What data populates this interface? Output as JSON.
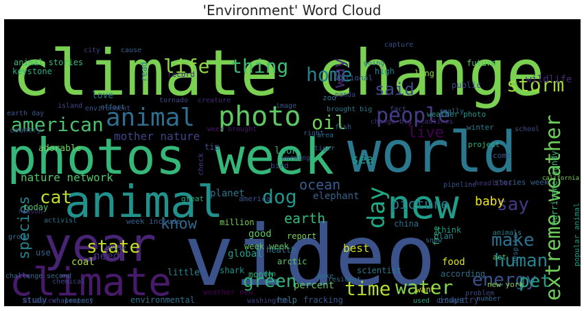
{
  "title": "'Environment' Word Cloud",
  "words": [
    {
      "text": "climate change",
      "color": "#7ad151"
    },
    {
      "text": "video",
      "color": "#3b528b"
    },
    {
      "text": "world",
      "color": "#2a788e"
    },
    {
      "text": "photos week",
      "color": "#35b779"
    },
    {
      "text": "animal",
      "color": "#21918c"
    },
    {
      "text": "year",
      "color": "#482475"
    },
    {
      "text": "climate",
      "color": "#481a6c"
    },
    {
      "text": "new",
      "color": "#1f9e89"
    },
    {
      "text": "extreme weather",
      "color": "#6ece58"
    },
    {
      "text": "photo",
      "color": "#5ec962"
    },
    {
      "text": "animal",
      "color": "#2e6e8e"
    },
    {
      "text": "life",
      "color": "#90d743"
    },
    {
      "text": "thing",
      "color": "#3fbc73"
    },
    {
      "text": "home",
      "color": "#26828e"
    },
    {
      "text": "storm",
      "color": "#9fda3a"
    },
    {
      "text": "said",
      "color": "#3e4a89"
    },
    {
      "text": "american",
      "color": "#4ac16d"
    },
    {
      "text": "people",
      "color": "#433e85"
    },
    {
      "text": "oil",
      "color": "#6ece58"
    },
    {
      "text": "day",
      "color": "#22a884"
    },
    {
      "text": "dog",
      "color": "#1f958b"
    },
    {
      "text": "cat",
      "color": "#bddf26"
    },
    {
      "text": "say",
      "color": "#443983"
    },
    {
      "text": "species",
      "color": "#25848e"
    },
    {
      "text": "know",
      "color": "#31688e"
    },
    {
      "text": "make",
      "color": "#2c728e"
    },
    {
      "text": "state",
      "color": "#cae11f"
    },
    {
      "text": "human",
      "color": "#26828e"
    },
    {
      "text": "green",
      "color": "#2fb47c"
    },
    {
      "text": "time",
      "color": "#b5de2b"
    },
    {
      "text": "water",
      "color": "#84d44b"
    },
    {
      "text": "energy",
      "color": "#3b528b"
    },
    {
      "text": "pet",
      "color": "#1fa088"
    },
    {
      "text": "earth",
      "color": "#35b779"
    },
    {
      "text": "picture",
      "color": "#2a788e"
    },
    {
      "text": "ocean",
      "color": "#375b8d"
    },
    {
      "text": "live",
      "color": "#440154"
    },
    {
      "text": "way",
      "color": "#472c7a"
    },
    {
      "text": "mother nature",
      "color": "#414487"
    },
    {
      "text": "nature network",
      "color": "#52c569"
    },
    {
      "text": "animal stories",
      "color": "#3dbc74"
    },
    {
      "text": "adorable",
      "color": "#70cf57"
    },
    {
      "text": "sea",
      "color": "#1e9b8a"
    },
    {
      "text": "elephant",
      "color": "#33638d"
    },
    {
      "text": "look",
      "color": "#29af7f"
    },
    {
      "text": "need",
      "color": "#46337e"
    },
    {
      "text": "percent",
      "color": "#5ec962"
    },
    {
      "text": "help",
      "color": "#25848e"
    },
    {
      "text": "food",
      "color": "#dde318"
    },
    {
      "text": "according",
      "color": "#2d708e"
    },
    {
      "text": "baby",
      "color": "#f1e51d"
    },
    {
      "text": "future",
      "color": "#52c569"
    },
    {
      "text": "public",
      "color": "#3e4989"
    },
    {
      "text": "wildlife",
      "color": "#482878"
    },
    {
      "text": "read",
      "color": "#297b8e"
    },
    {
      "text": "love",
      "color": "#2a788e"
    },
    {
      "text": "coal",
      "color": "#a8db34"
    },
    {
      "text": "best",
      "color": "#d0e11c"
    },
    {
      "text": "good",
      "color": "#5ec962"
    },
    {
      "text": "planet",
      "color": "#2c728e"
    },
    {
      "text": "report",
      "color": "#7ad151"
    },
    {
      "text": "fracking",
      "color": "#38588c"
    },
    {
      "text": "new york",
      "color": "#86d549"
    },
    {
      "text": "health",
      "color": "#2a768e"
    },
    {
      "text": "global",
      "color": "#1f9f88"
    },
    {
      "text": "shark",
      "color": "#20928c"
    },
    {
      "text": "arctic",
      "color": "#5ec962"
    },
    {
      "text": "month",
      "color": "#31b57b"
    },
    {
      "text": "little",
      "color": "#25848e"
    },
    {
      "text": "tip",
      "color": "#3b528b"
    },
    {
      "text": "china",
      "color": "#2c728e"
    },
    {
      "text": "industry",
      "color": "#3e4a89"
    },
    {
      "text": "think",
      "color": "#1f998a"
    },
    {
      "text": "plan",
      "color": "#26828e"
    },
    {
      "text": "snow",
      "color": "#2e6f8e"
    },
    {
      "text": "weather new",
      "color": "#440154"
    },
    {
      "text": "environmental",
      "color": "#2c728e"
    },
    {
      "text": "week week",
      "color": "#5ec962"
    },
    {
      "text": "scientist",
      "color": "#2a788e"
    },
    {
      "text": "million",
      "color": "#7ad151"
    },
    {
      "text": "today",
      "color": "#54c568"
    },
    {
      "text": "use",
      "color": "#31688e"
    },
    {
      "text": "country",
      "color": "#3e4989"
    },
    {
      "text": "keystone",
      "color": "#2ab07f"
    },
    {
      "text": "high",
      "color": "#26828e"
    },
    {
      "text": "long",
      "color": "#90d743"
    },
    {
      "text": "national",
      "color": "#365c8d"
    },
    {
      "text": "record",
      "color": "#482878"
    },
    {
      "text": "zoo",
      "color": "#2c728e"
    },
    {
      "text": "hurricane sandy",
      "color": "#3dbc74"
    },
    {
      "text": "weather photo",
      "color": "#1f968b"
    },
    {
      "text": "stories week",
      "color": "#32658e"
    },
    {
      "text": "project",
      "color": "#2ab07f"
    },
    {
      "text": "winter",
      "color": "#287d8e"
    },
    {
      "text": "california",
      "color": "#7ad151"
    },
    {
      "text": "school",
      "color": "#3b528b"
    },
    {
      "text": "come",
      "color": "#38588c"
    },
    {
      "text": "act",
      "color": "#52c569"
    },
    {
      "text": "popular animal",
      "color": "#1e9c89"
    },
    {
      "text": "free",
      "color": "#2ab07f"
    },
    {
      "text": "want",
      "color": "#cae11f"
    },
    {
      "text": "used",
      "color": "#20a386"
    },
    {
      "text": "america",
      "color": "#3b528b"
    },
    {
      "text": "washington",
      "color": "#414487"
    },
    {
      "text": "week brought",
      "color": "#48186a"
    },
    {
      "text": "week include",
      "color": "#355f8d"
    },
    {
      "text": "right",
      "color": "#33638d"
    },
    {
      "text": "great",
      "color": "#2ab07f"
    },
    {
      "text": "bird",
      "color": "#3e4a89"
    },
    {
      "text": "check",
      "color": "#453781"
    },
    {
      "text": "don",
      "color": "#1fa188"
    },
    {
      "text": "resident",
      "color": "#2e6e8e"
    },
    {
      "text": "animals",
      "color": "#26828e"
    },
    {
      "text": "make",
      "color": "#2c728e"
    },
    {
      "text": "pipeline",
      "color": "#3b528b"
    },
    {
      "text": "headlines",
      "color": "#46337e"
    },
    {
      "text": "brought big",
      "color": "#2a788e"
    },
    {
      "text": "panda",
      "color": "#404688"
    },
    {
      "text": "tiger",
      "color": "#38588c"
    },
    {
      "text": "drought",
      "color": "#33638d"
    },
    {
      "text": "number",
      "color": "#31688e"
    },
    {
      "text": "problem",
      "color": "#3e4989"
    },
    {
      "text": "group",
      "color": "#2d708e"
    },
    {
      "text": "island",
      "color": "#3e4a89"
    },
    {
      "text": "challenge",
      "color": "#2e6e8e"
    },
    {
      "text": "disaster",
      "color": "#482878"
    },
    {
      "text": "company",
      "color": "#414487"
    },
    {
      "text": "study",
      "color": "#33638d"
    },
    {
      "text": "whale",
      "color": "#3b528b"
    },
    {
      "text": "protect",
      "color": "#31688e"
    },
    {
      "text": "second",
      "color": "#2c728e"
    },
    {
      "text": "house",
      "color": "#3e4989"
    },
    {
      "text": "reason",
      "color": "#472d7b"
    },
    {
      "text": "activist",
      "color": "#2c728e"
    },
    {
      "text": "chemical",
      "color": "#404688"
    },
    {
      "text": "effort",
      "color": "#2e6e8e"
    },
    {
      "text": "earth day",
      "color": "#38588c"
    },
    {
      "text": "environment",
      "color": "#3b528b"
    },
    {
      "text": "creature",
      "color": "#482878"
    },
    {
      "text": "tornado",
      "color": "#3e4a89"
    },
    {
      "text": "city",
      "color": "#404688"
    },
    {
      "text": "cause",
      "color": "#355f8d"
    },
    {
      "text": "going",
      "color": "#2d708e"
    },
    {
      "text": "capture",
      "color": "#3b528b"
    },
    {
      "text": "change big headlines",
      "color": "#472c7a"
    },
    {
      "text": "really",
      "color": "#2c728e"
    },
    {
      "text": "fact",
      "color": "#3e4989"
    },
    {
      "text": "fish",
      "color": "#33638d"
    },
    {
      "text": "image",
      "color": "#38588c"
    },
    {
      "text": "area",
      "color": "#2e6e8e"
    },
    {
      "text": "despite",
      "color": "#2d708e"
    },
    {
      "text": "warming",
      "color": "#3e4a89"
    },
    {
      "text": "cost",
      "color": "#3b528b"
    }
  ]
}
